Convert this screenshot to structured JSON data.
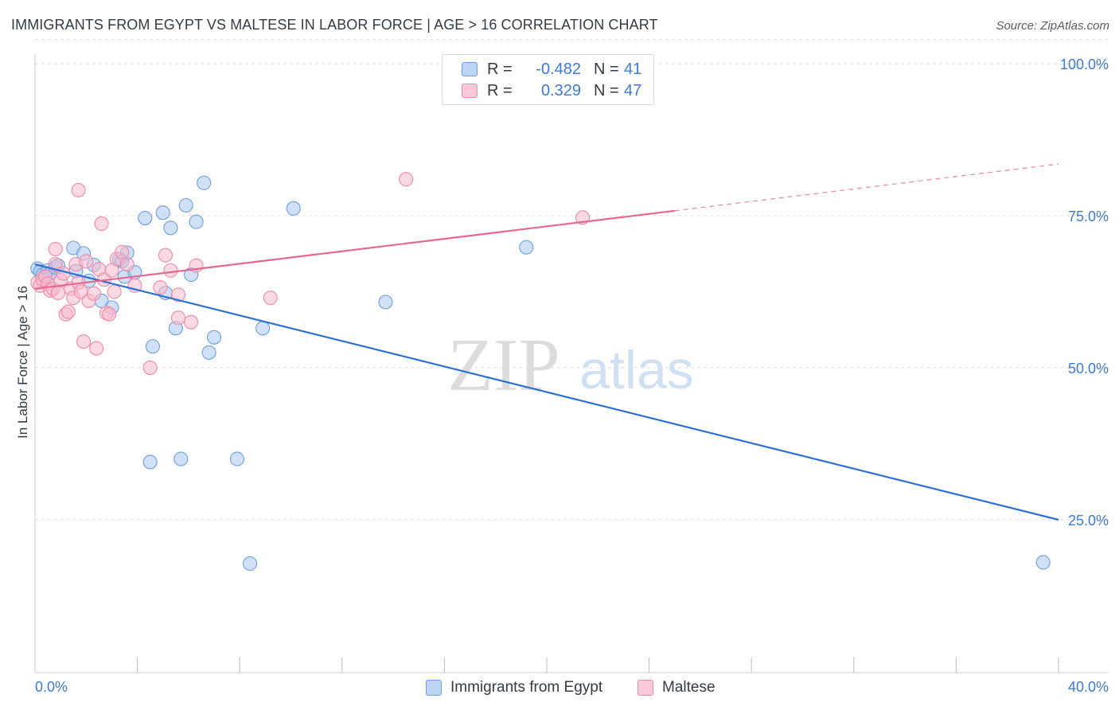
{
  "header": {
    "title": "IMMIGRANTS FROM EGYPT VS MALTESE IN LABOR FORCE | AGE > 16 CORRELATION CHART",
    "source": "Source: ZipAtlas.com"
  },
  "watermark": {
    "zip": "ZIP",
    "atlas": "atlas"
  },
  "legend": {
    "rows": [
      {
        "r_label": "R =",
        "r_value": "-0.482",
        "n_label": "N =",
        "n_value": "41"
      },
      {
        "r_label": "R =",
        "r_value": "0.329",
        "n_label": "N =",
        "n_value": "47"
      }
    ]
  },
  "colors": {
    "egypt_fill": "#a9c8f0",
    "egypt_stroke": "#6d9ee0",
    "egypt_line": "#2f6fd0",
    "maltese_fill": "#f7b9cc",
    "maltese_stroke": "#eb8aa8",
    "maltese_line": "#e56890",
    "tick_label": "#3d7ad6",
    "grid": "#dddddd"
  },
  "chart_data": {
    "type": "scatter",
    "title": "IMMIGRANTS FROM EGYPT VS MALTESE IN LABOR FORCE | AGE > 16 CORRELATION CHART",
    "xlabel": "",
    "ylabel": "In Labor Force | Age > 16",
    "xlim": [
      0,
      40
    ],
    "ylim": [
      0,
      105
    ],
    "x_tick_labels": [
      "0.0%",
      "40.0%"
    ],
    "y_ticks": [
      25,
      50,
      75,
      100
    ],
    "y_tick_labels": [
      "25.0%",
      "50.0%",
      "75.0%",
      "100.0%"
    ],
    "grid": true,
    "legend_position": "bottom",
    "series": [
      {
        "name": "Immigrants from Egypt",
        "r": -0.482,
        "n": 41,
        "trend": {
          "x": [
            0,
            40
          ],
          "y": [
            67.0,
            25.0
          ],
          "dashed_from": null
        },
        "points": [
          [
            0.1,
            66.3
          ],
          [
            0.2,
            65.8
          ],
          [
            0.3,
            65.3
          ],
          [
            0.4,
            65.0
          ],
          [
            0.5,
            66.0
          ],
          [
            0.6,
            65.5
          ],
          [
            0.8,
            66.5
          ],
          [
            0.9,
            66.8
          ],
          [
            1.5,
            69.7
          ],
          [
            1.6,
            65.9
          ],
          [
            1.9,
            68.8
          ],
          [
            2.1,
            64.3
          ],
          [
            2.3,
            66.9
          ],
          [
            2.6,
            61.0
          ],
          [
            3.0,
            59.9
          ],
          [
            3.3,
            67.8
          ],
          [
            3.4,
            67.5
          ],
          [
            3.5,
            65.0
          ],
          [
            3.6,
            68.9
          ],
          [
            3.9,
            65.7
          ],
          [
            4.3,
            74.6
          ],
          [
            4.5,
            34.5
          ],
          [
            4.6,
            53.5
          ],
          [
            5.0,
            75.5
          ],
          [
            5.1,
            62.3
          ],
          [
            5.3,
            73.0
          ],
          [
            5.5,
            56.5
          ],
          [
            5.7,
            35.0
          ],
          [
            5.9,
            76.7
          ],
          [
            6.1,
            65.3
          ],
          [
            6.3,
            74.0
          ],
          [
            6.6,
            80.4
          ],
          [
            6.8,
            52.5
          ],
          [
            7.0,
            55.0
          ],
          [
            7.9,
            35.0
          ],
          [
            8.4,
            17.8
          ],
          [
            8.9,
            56.5
          ],
          [
            10.1,
            76.2
          ],
          [
            13.7,
            60.8
          ],
          [
            19.2,
            69.8
          ],
          [
            39.4,
            18.0
          ]
        ]
      },
      {
        "name": "Maltese",
        "r": 0.329,
        "n": 47,
        "trend": {
          "x": [
            0,
            40
          ],
          "y": [
            63.0,
            83.5
          ],
          "dashed_from": 25
        },
        "points": [
          [
            0.1,
            64.0
          ],
          [
            0.2,
            63.5
          ],
          [
            0.3,
            64.5
          ],
          [
            0.4,
            65.0
          ],
          [
            0.5,
            63.8
          ],
          [
            0.6,
            62.7
          ],
          [
            0.7,
            63.0
          ],
          [
            0.8,
            67.0
          ],
          [
            0.8,
            69.5
          ],
          [
            0.9,
            62.3
          ],
          [
            1.0,
            64.4
          ],
          [
            1.1,
            65.5
          ],
          [
            1.2,
            58.8
          ],
          [
            1.3,
            59.2
          ],
          [
            1.4,
            63.0
          ],
          [
            1.5,
            61.5
          ],
          [
            1.6,
            67.0
          ],
          [
            1.7,
            64.0
          ],
          [
            1.7,
            79.2
          ],
          [
            1.8,
            62.5
          ],
          [
            1.9,
            54.3
          ],
          [
            2.0,
            67.5
          ],
          [
            2.1,
            61.0
          ],
          [
            2.3,
            62.2
          ],
          [
            2.4,
            53.2
          ],
          [
            2.5,
            66.2
          ],
          [
            2.6,
            73.7
          ],
          [
            2.7,
            64.5
          ],
          [
            2.8,
            59.0
          ],
          [
            2.9,
            58.8
          ],
          [
            3.0,
            66.0
          ],
          [
            3.1,
            62.5
          ],
          [
            3.2,
            67.9
          ],
          [
            3.4,
            69.0
          ],
          [
            3.6,
            67.0
          ],
          [
            3.9,
            63.5
          ],
          [
            4.5,
            50.0
          ],
          [
            4.9,
            63.2
          ],
          [
            5.1,
            68.5
          ],
          [
            5.3,
            66.0
          ],
          [
            5.6,
            62.0
          ],
          [
            5.6,
            58.2
          ],
          [
            6.1,
            57.5
          ],
          [
            6.3,
            66.8
          ],
          [
            9.2,
            61.5
          ],
          [
            14.5,
            81.0
          ],
          [
            21.4,
            74.7
          ]
        ]
      }
    ]
  },
  "bottom_legend": [
    {
      "label": "Immigrants from Egypt"
    },
    {
      "label": "Maltese"
    }
  ]
}
